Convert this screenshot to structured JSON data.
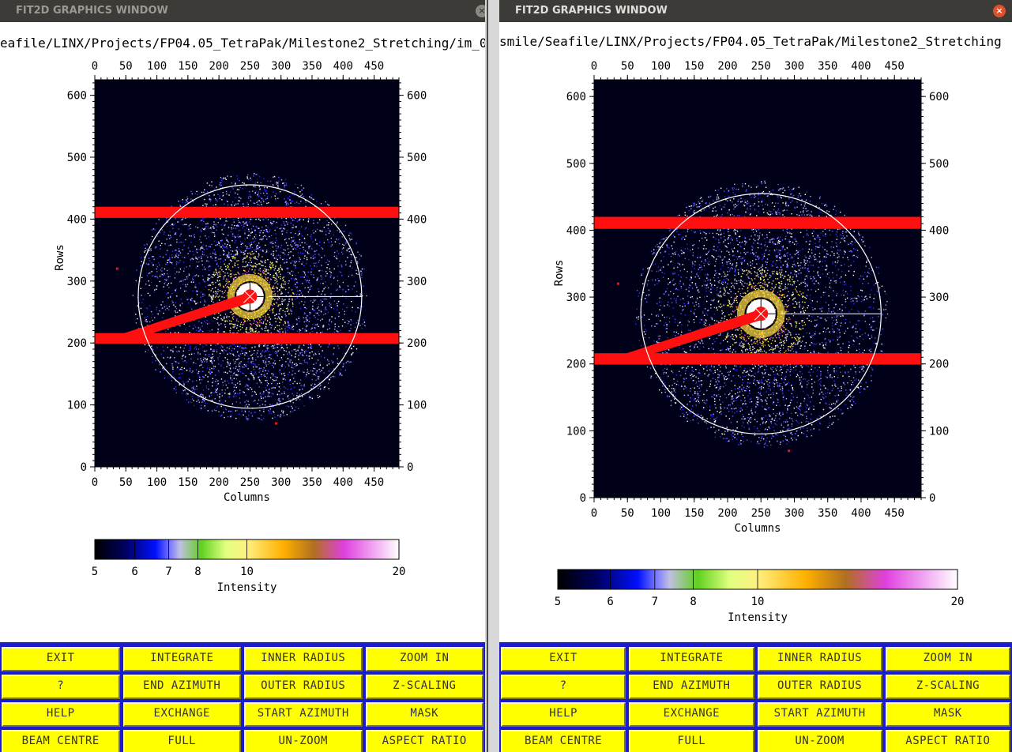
{
  "windows": [
    {
      "id": "left",
      "title": "FIT2D GRAPHICS WINDOW",
      "close_glyph": "×",
      "path_text": "eafile/LINX/Projects/FP04.05_TetraPak/Milestone2_Stretching/im_0",
      "axes": {
        "x_label": "Columns",
        "y_label": "Rows",
        "x_ticks": [
          "0",
          "50",
          "100",
          "150",
          "200",
          "250",
          "300",
          "350",
          "400",
          "450"
        ],
        "y_ticks": [
          "0",
          "100",
          "200",
          "300",
          "400",
          "500",
          "600"
        ],
        "x_range": [
          0,
          490
        ],
        "y_range": [
          0,
          625
        ]
      },
      "colorbar": {
        "label": "Intensity",
        "tick_labels": [
          "5",
          "6",
          "7",
          "8",
          "10",
          "20"
        ],
        "tick_values": [
          5,
          6,
          7,
          8,
          10,
          20
        ]
      },
      "menu": [
        [
          "EXIT",
          "INTEGRATE",
          "INNER RADIUS",
          "ZOOM IN"
        ],
        [
          "?",
          "END AZIMUTH",
          "OUTER RADIUS",
          "Z-SCALING"
        ],
        [
          "HELP",
          "EXCHANGE",
          "START AZIMUTH",
          "MASK"
        ],
        [
          "BEAM CENTRE",
          "FULL",
          "UN-ZOOM",
          "ASPECT RATIO"
        ]
      ]
    },
    {
      "id": "right",
      "title": "FIT2D GRAPHICS WINDOW",
      "close_glyph": "×",
      "path_text": "smile/Seafile/LINX/Projects/FP04.05_TetraPak/Milestone2_Stretching",
      "axes": {
        "x_label": "Columns",
        "y_label": "Rows",
        "x_ticks": [
          "0",
          "50",
          "100",
          "150",
          "200",
          "250",
          "300",
          "350",
          "400",
          "450"
        ],
        "y_ticks": [
          "0",
          "100",
          "200",
          "300",
          "400",
          "500",
          "600"
        ],
        "x_range": [
          0,
          490
        ],
        "y_range": [
          0,
          625
        ]
      },
      "colorbar": {
        "label": "Intensity",
        "tick_labels": [
          "5",
          "6",
          "7",
          "8",
          "10",
          "20"
        ],
        "tick_values": [
          5,
          6,
          7,
          8,
          10,
          20
        ]
      },
      "menu": [
        [
          "EXIT",
          "INTEGRATE",
          "INNER RADIUS",
          "ZOOM IN"
        ],
        [
          "?",
          "END AZIMUTH",
          "OUTER RADIUS",
          "Z-SCALING"
        ],
        [
          "HELP",
          "EXCHANGE",
          "START AZIMUTH",
          "MASK"
        ],
        [
          "BEAM CENTRE",
          "FULL",
          "UN-ZOOM",
          "ASPECT RATIO"
        ]
      ]
    }
  ],
  "image": {
    "beam_centre": [
      250,
      275
    ],
    "mask_bands_rows": [
      [
        199,
        216
      ],
      [
        402,
        420
      ]
    ],
    "integration_circle_radius": 180,
    "inner_circle_radius": 30,
    "colors": {
      "background": "#000018",
      "mask": "#ff1010",
      "circle": "#ffffff",
      "button": "#ffff00",
      "menu_bg": "#1c1ccc"
    }
  }
}
